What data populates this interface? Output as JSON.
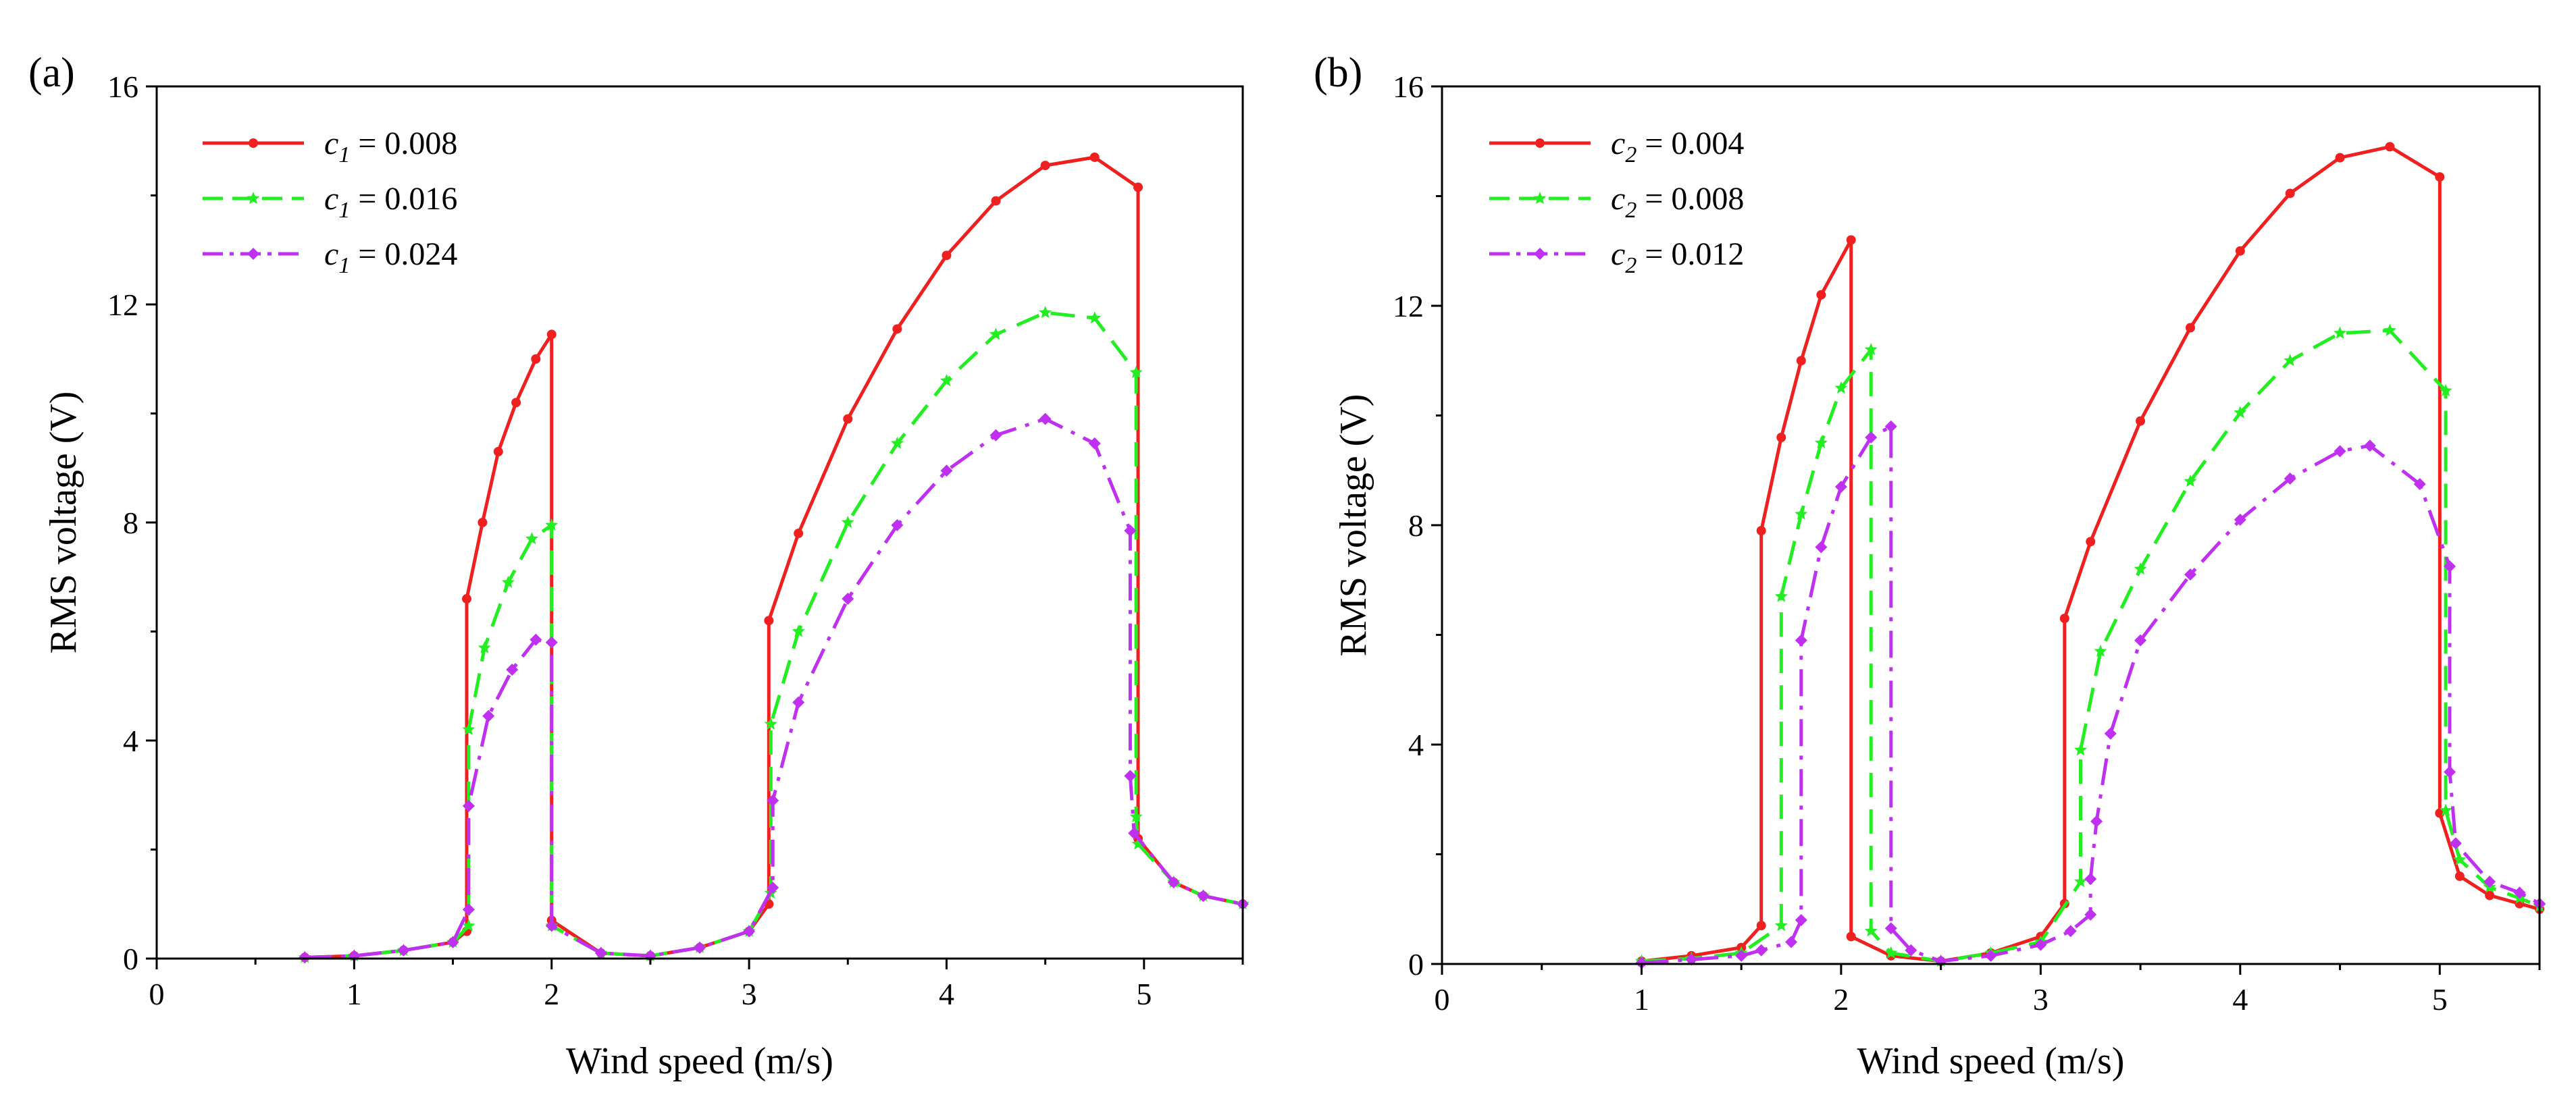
{
  "chart_data": [
    {
      "type": "line",
      "panel_label": "(a)",
      "xlabel": "Wind speed (m/s)",
      "ylabel": "RMS voltage (V)",
      "xlim": [
        0,
        5.5
      ],
      "ylim": [
        0,
        16
      ],
      "xticks": [
        0,
        1,
        2,
        3,
        4,
        5
      ],
      "yticks": [
        0,
        4,
        8,
        12,
        16
      ],
      "legend_position": "top-left",
      "series": [
        {
          "name": "c1 = 0.008",
          "legend_var": "c",
          "legend_sub": "1",
          "legend_value": " = 0.008",
          "color": "#ef2020",
          "dash": "solid",
          "marker": "circle",
          "points": [
            [
              0.75,
              0.02
            ],
            [
              1.0,
              0.05
            ],
            [
              1.25,
              0.15
            ],
            [
              1.5,
              0.3
            ],
            [
              1.57,
              0.5
            ],
            [
              1.57,
              6.6
            ],
            [
              1.65,
              8.0
            ],
            [
              1.73,
              9.3
            ],
            [
              1.82,
              10.2
            ],
            [
              1.92,
              11.0
            ],
            [
              2.0,
              11.45
            ],
            [
              2.0,
              0.7
            ],
            [
              2.25,
              0.1
            ],
            [
              2.5,
              0.05
            ],
            [
              2.75,
              0.2
            ],
            [
              3.0,
              0.5
            ],
            [
              3.1,
              1.0
            ],
            [
              3.1,
              6.2
            ],
            [
              3.25,
              7.8
            ],
            [
              3.5,
              9.9
            ],
            [
              3.75,
              11.55
            ],
            [
              4.0,
              12.9
            ],
            [
              4.25,
              13.9
            ],
            [
              4.5,
              14.55
            ],
            [
              4.75,
              14.7
            ],
            [
              4.97,
              14.15
            ],
            [
              4.97,
              2.2
            ],
            [
              5.15,
              1.4
            ],
            [
              5.3,
              1.15
            ],
            [
              5.5,
              1.0
            ]
          ]
        },
        {
          "name": "c1 = 0.016",
          "legend_var": "c",
          "legend_sub": "1",
          "legend_value": " = 0.016",
          "color": "#22ee22",
          "dash": "dash",
          "marker": "star",
          "points": [
            [
              0.75,
              0.02
            ],
            [
              1.0,
              0.05
            ],
            [
              1.25,
              0.15
            ],
            [
              1.5,
              0.3
            ],
            [
              1.58,
              0.6
            ],
            [
              1.58,
              4.2
            ],
            [
              1.66,
              5.7
            ],
            [
              1.78,
              6.9
            ],
            [
              1.9,
              7.7
            ],
            [
              2.0,
              7.95
            ],
            [
              2.0,
              0.6
            ],
            [
              2.25,
              0.1
            ],
            [
              2.5,
              0.05
            ],
            [
              2.75,
              0.2
            ],
            [
              3.0,
              0.5
            ],
            [
              3.11,
              1.2
            ],
            [
              3.11,
              4.3
            ],
            [
              3.25,
              6.0
            ],
            [
              3.5,
              8.0
            ],
            [
              3.75,
              9.45
            ],
            [
              4.0,
              10.6
            ],
            [
              4.25,
              11.45
            ],
            [
              4.5,
              11.85
            ],
            [
              4.75,
              11.75
            ],
            [
              4.96,
              10.75
            ],
            [
              4.96,
              2.6
            ],
            [
              4.97,
              2.1
            ],
            [
              5.15,
              1.4
            ],
            [
              5.3,
              1.15
            ],
            [
              5.5,
              1.0
            ]
          ]
        },
        {
          "name": "c1 = 0.024",
          "legend_var": "c",
          "legend_sub": "1",
          "legend_value": " = 0.024",
          "color": "#c030f0",
          "dash": "dashdot",
          "marker": "diamond",
          "points": [
            [
              0.75,
              0.02
            ],
            [
              1.0,
              0.05
            ],
            [
              1.25,
              0.15
            ],
            [
              1.5,
              0.3
            ],
            [
              1.58,
              0.9
            ],
            [
              1.58,
              2.8
            ],
            [
              1.68,
              4.45
            ],
            [
              1.8,
              5.3
            ],
            [
              1.92,
              5.85
            ],
            [
              2.0,
              5.8
            ],
            [
              2.0,
              0.6
            ],
            [
              2.25,
              0.1
            ],
            [
              2.5,
              0.05
            ],
            [
              2.75,
              0.2
            ],
            [
              3.0,
              0.5
            ],
            [
              3.12,
              1.3
            ],
            [
              3.12,
              2.9
            ],
            [
              3.25,
              4.7
            ],
            [
              3.5,
              6.6
            ],
            [
              3.75,
              7.95
            ],
            [
              4.0,
              8.95
            ],
            [
              4.25,
              9.6
            ],
            [
              4.5,
              9.9
            ],
            [
              4.75,
              9.45
            ],
            [
              4.93,
              7.85
            ],
            [
              4.93,
              3.35
            ],
            [
              4.95,
              2.3
            ],
            [
              5.15,
              1.4
            ],
            [
              5.3,
              1.15
            ],
            [
              5.5,
              1.0
            ]
          ]
        }
      ]
    },
    {
      "type": "line",
      "panel_label": "(b)",
      "xlabel": "Wind speed (m/s)",
      "ylabel": "RMS voltage (V)",
      "xlim": [
        0,
        5.5
      ],
      "ylim": [
        0,
        16
      ],
      "xticks": [
        0,
        1,
        2,
        3,
        4,
        5
      ],
      "yticks": [
        0,
        4,
        8,
        12,
        16
      ],
      "legend_position": "top-left",
      "series": [
        {
          "name": "c2 = 0.004",
          "legend_var": "c",
          "legend_sub": "2",
          "legend_value": " = 0.004",
          "color": "#ef2020",
          "dash": "solid",
          "marker": "circle",
          "points": [
            [
              1.0,
              0.05
            ],
            [
              1.25,
              0.15
            ],
            [
              1.5,
              0.3
            ],
            [
              1.6,
              0.7
            ],
            [
              1.6,
              7.9
            ],
            [
              1.7,
              9.6
            ],
            [
              1.8,
              11.0
            ],
            [
              1.9,
              12.2
            ],
            [
              2.05,
              13.2
            ],
            [
              2.05,
              0.5
            ],
            [
              2.25,
              0.15
            ],
            [
              2.5,
              0.05
            ],
            [
              2.75,
              0.2
            ],
            [
              3.0,
              0.5
            ],
            [
              3.12,
              1.1
            ],
            [
              3.12,
              6.3
            ],
            [
              3.25,
              7.7
            ],
            [
              3.5,
              9.9
            ],
            [
              3.75,
              11.6
            ],
            [
              4.0,
              13.0
            ],
            [
              4.25,
              14.05
            ],
            [
              4.5,
              14.7
            ],
            [
              4.75,
              14.9
            ],
            [
              5.0,
              14.35
            ],
            [
              5.0,
              2.75
            ],
            [
              5.1,
              1.6
            ],
            [
              5.25,
              1.25
            ],
            [
              5.4,
              1.1
            ],
            [
              5.5,
              1.0
            ]
          ]
        },
        {
          "name": "c2 = 0.008",
          "legend_var": "c",
          "legend_sub": "2",
          "legend_value": " = 0.008",
          "color": "#22ee22",
          "dash": "dash",
          "marker": "star",
          "points": [
            [
              1.0,
              0.05
            ],
            [
              1.25,
              0.1
            ],
            [
              1.5,
              0.2
            ],
            [
              1.7,
              0.7
            ],
            [
              1.7,
              6.7
            ],
            [
              1.8,
              8.2
            ],
            [
              1.9,
              9.5
            ],
            [
              2.0,
              10.5
            ],
            [
              2.15,
              11.2
            ],
            [
              2.15,
              0.6
            ],
            [
              2.25,
              0.2
            ],
            [
              2.5,
              0.05
            ],
            [
              2.75,
              0.2
            ],
            [
              3.0,
              0.4
            ],
            [
              3.2,
              1.5
            ],
            [
              3.2,
              3.9
            ],
            [
              3.3,
              5.7
            ],
            [
              3.5,
              7.2
            ],
            [
              3.75,
              8.8
            ],
            [
              4.0,
              10.05
            ],
            [
              4.25,
              11.0
            ],
            [
              4.5,
              11.5
            ],
            [
              4.75,
              11.55
            ],
            [
              5.03,
              10.45
            ],
            [
              5.03,
              2.8
            ],
            [
              5.1,
              1.9
            ],
            [
              5.25,
              1.4
            ],
            [
              5.4,
              1.2
            ],
            [
              5.5,
              1.05
            ]
          ]
        },
        {
          "name": "c2 = 0.012",
          "legend_var": "c",
          "legend_sub": "2",
          "legend_value": " = 0.012",
          "color": "#c030f0",
          "dash": "dashdot",
          "marker": "diamond",
          "points": [
            [
              1.0,
              0.02
            ],
            [
              1.25,
              0.08
            ],
            [
              1.5,
              0.15
            ],
            [
              1.6,
              0.25
            ],
            [
              1.75,
              0.4
            ],
            [
              1.8,
              0.8
            ],
            [
              1.8,
              5.9
            ],
            [
              1.9,
              7.6
            ],
            [
              2.0,
              8.7
            ],
            [
              2.15,
              9.6
            ],
            [
              2.25,
              9.8
            ],
            [
              2.25,
              0.65
            ],
            [
              2.35,
              0.25
            ],
            [
              2.5,
              0.05
            ],
            [
              2.75,
              0.15
            ],
            [
              3.0,
              0.35
            ],
            [
              3.15,
              0.6
            ],
            [
              3.25,
              0.9
            ],
            [
              3.25,
              1.55
            ],
            [
              3.28,
              2.6
            ],
            [
              3.35,
              4.2
            ],
            [
              3.5,
              5.9
            ],
            [
              3.75,
              7.1
            ],
            [
              4.0,
              8.1
            ],
            [
              4.25,
              8.85
            ],
            [
              4.5,
              9.35
            ],
            [
              4.65,
              9.45
            ],
            [
              4.9,
              8.75
            ],
            [
              5.05,
              7.25
            ],
            [
              5.05,
              3.5
            ],
            [
              5.08,
              2.2
            ],
            [
              5.25,
              1.5
            ],
            [
              5.4,
              1.3
            ],
            [
              5.5,
              1.1
            ]
          ]
        }
      ]
    }
  ]
}
